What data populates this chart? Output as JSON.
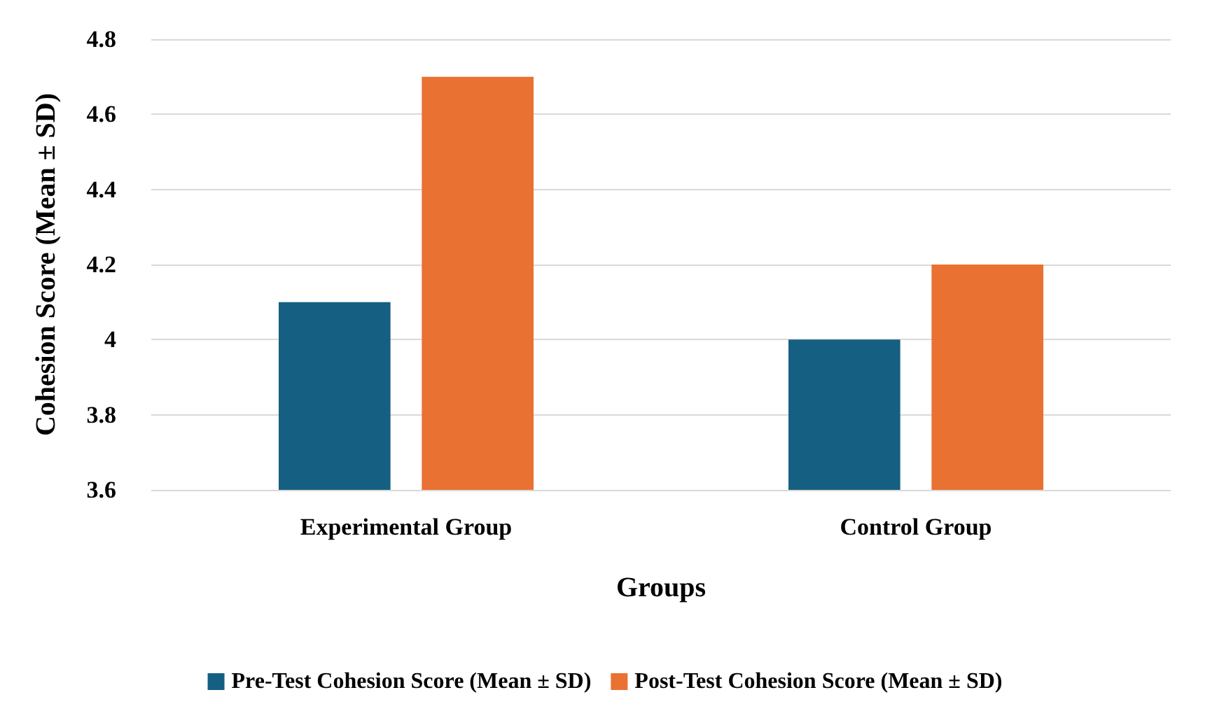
{
  "chart_data": {
    "type": "bar",
    "xlabel": "Groups",
    "ylabel": "Cohesion Score (Mean ± SD)",
    "categories": [
      "Experimental Group",
      "Control Group"
    ],
    "series": [
      {
        "name": "Pre-Test Cohesion Score (Mean ± SD)",
        "color": "#156082",
        "values": [
          4.1,
          4.0
        ]
      },
      {
        "name": "Post-Test Cohesion Score (Mean ± SD)",
        "color": "#e97132",
        "values": [
          4.7,
          4.2
        ]
      }
    ],
    "ylim": [
      3.6,
      4.8
    ],
    "yticks": [
      3.6,
      3.8,
      4,
      4.2,
      4.4,
      4.6,
      4.8
    ],
    "grid": "y",
    "legend": "bottom"
  }
}
